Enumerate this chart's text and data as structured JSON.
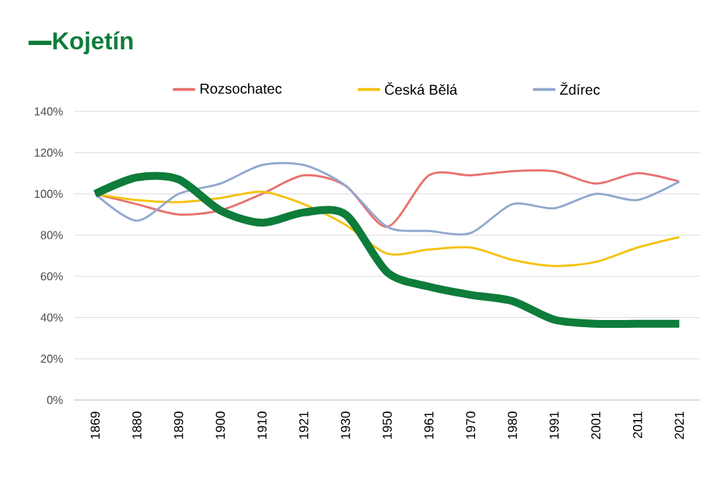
{
  "chart_data": {
    "type": "line",
    "categories": [
      "1869",
      "1880",
      "1890",
      "1900",
      "1910",
      "1921",
      "1930",
      "1950",
      "1961",
      "1970",
      "1980",
      "1991",
      "2001",
      "2011",
      "2021"
    ],
    "series": [
      {
        "name": "Kojetín",
        "color": "#0e7c3a",
        "values": [
          100,
          108,
          107,
          92,
          86,
          91,
          90,
          62,
          55,
          51,
          48,
          39,
          37,
          37,
          37
        ]
      },
      {
        "name": "Rozsochatec",
        "color": "#e8726f",
        "values": [
          100,
          95,
          90,
          92,
          100,
          109,
          104,
          84,
          109,
          109,
          111,
          111,
          105,
          110,
          106
        ]
      },
      {
        "name": "Česká Bělá",
        "color": "#f4c20d",
        "values": [
          100,
          97,
          96,
          98,
          101,
          95,
          85,
          71,
          73,
          74,
          68,
          65,
          67,
          74,
          79
        ]
      },
      {
        "name": "Ždírec",
        "color": "#91a8d0",
        "values": [
          100,
          87,
          100,
          105,
          114,
          114,
          104,
          84,
          82,
          81,
          95,
          93,
          100,
          97,
          106
        ]
      }
    ],
    "ylim": [
      0,
      140
    ],
    "yticks": [
      {
        "value": 0,
        "label": "0%"
      },
      {
        "value": 20,
        "label": "20%"
      },
      {
        "value": 40,
        "label": "40%"
      },
      {
        "value": 60,
        "label": "60%"
      },
      {
        "value": 80,
        "label": "80%"
      },
      {
        "value": 100,
        "label": "100%"
      },
      {
        "value": 120,
        "label": "120%"
      },
      {
        "value": 140,
        "label": "140%"
      }
    ],
    "grid": "y",
    "legend": "top",
    "marker": "none",
    "line_style": "solid"
  }
}
